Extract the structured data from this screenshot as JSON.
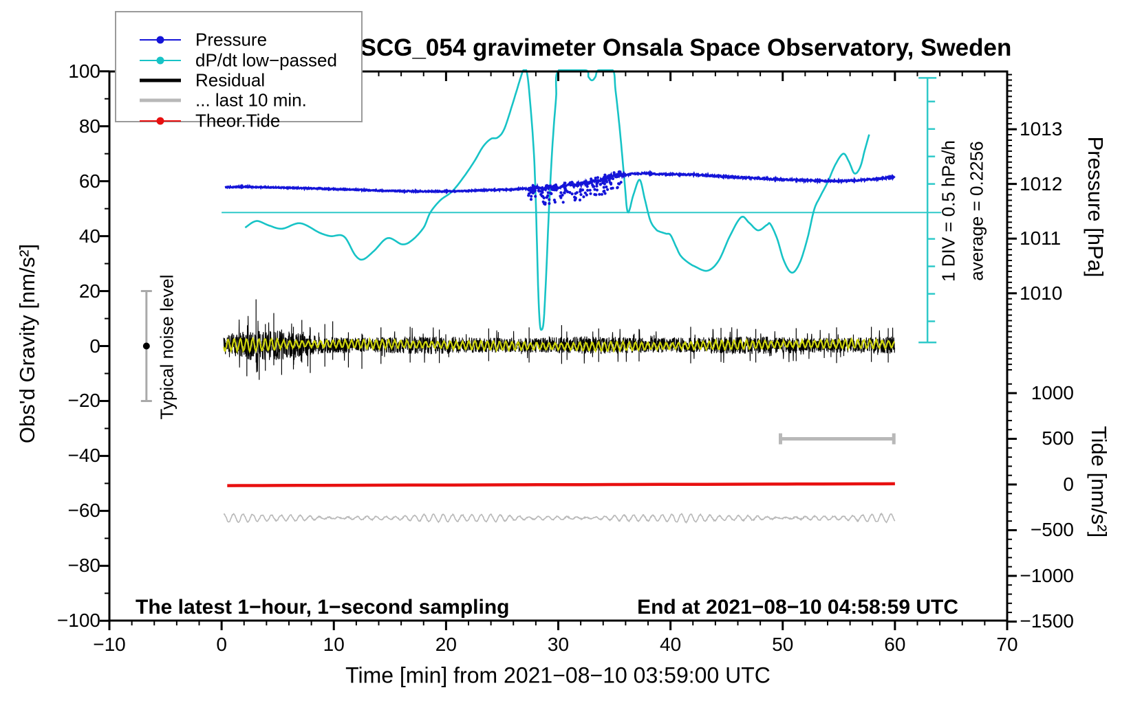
{
  "title": "SCG_054 gravimeter Onsala Space Observatory, Sweden",
  "annotations": {
    "sampling": "The latest 1−hour, 1−second sampling",
    "end": "End at 2021−08−10 04:58:59 UTC",
    "div": "1 DIV = 0.5 hPa/h",
    "average": "average = 0.2256",
    "noise": "Typical noise level"
  },
  "legend": {
    "items": [
      {
        "label": "Pressure",
        "color": "#1414d8",
        "marker": true,
        "thick": 2.5
      },
      {
        "label": "dP/dt low−passed",
        "color": "#17c3c6",
        "marker": true,
        "thick": 2.5
      },
      {
        "label": "Residual",
        "color": "#000000",
        "marker": false,
        "thick": 5
      },
      {
        "label": "... last 10 min.",
        "color": "#b8b8b8",
        "marker": false,
        "thick": 5
      },
      {
        "label": "Theor.Tide",
        "color": "#e81010",
        "marker": true,
        "thick": 2.5
      }
    ]
  },
  "axes": {
    "x": {
      "label": "Time [min] from 2021−08−10 03:59:00 UTC",
      "min": -10,
      "max": 70,
      "major": 10,
      "minor": 2
    },
    "gravity": {
      "label": "Obs'd Gravity [nm/s²]",
      "min": -100,
      "max": 100,
      "major": 20,
      "minor": 10
    },
    "pressure": {
      "label": "Pressure [hPa]",
      "ticks": [
        1013,
        1012,
        1011,
        1010
      ],
      "minor_step": 0.1,
      "g_at_1012": 59.0,
      "g_per_hpa": 19.9
    },
    "tide": {
      "label": "Tide [nm/s²]",
      "ticks": [
        1000,
        500,
        0,
        -500,
        -1000,
        -1500
      ],
      "minor_step": 100,
      "g_at_0": -50.4,
      "g_per_500": 16.63
    }
  },
  "colors": {
    "pressure": "#1414d8",
    "dpdt": "#17c3c6",
    "dpdt_guides": "#2fc9c9",
    "residual": "#000000",
    "residual_smooth": "#cdd30a",
    "last10": "#b8b8b8",
    "tide": "#e81010",
    "noise_bar": "#a9a9a9",
    "frame": "#000000"
  },
  "chart_data": {
    "type": "line",
    "title": "SCG_054 gravimeter Onsala Space Observatory, Sweden",
    "xlabel": "Time [min] from 2021−08−10 03:59:00 UTC",
    "x_range": [
      -10,
      70
    ],
    "gravity_range": [
      -100,
      100
    ],
    "legend_position": "top-left",
    "grid": false,
    "series": [
      {
        "name": "Pressure",
        "units": "hPa",
        "axis": "pressure-right",
        "points": [
          [
            0.3,
            1011.94
          ],
          [
            2,
            1011.95
          ],
          [
            4,
            1011.94
          ],
          [
            6,
            1011.93
          ],
          [
            8,
            1011.92
          ],
          [
            10,
            1011.905
          ],
          [
            12,
            1011.894
          ],
          [
            14,
            1011.879
          ],
          [
            16,
            1011.869
          ],
          [
            18,
            1011.864
          ],
          [
            20,
            1011.864
          ],
          [
            22,
            1011.874
          ],
          [
            24,
            1011.889
          ],
          [
            26,
            1011.899
          ],
          [
            27,
            1011.915
          ],
          [
            27.5,
            1011.9
          ],
          [
            28,
            1011.93
          ],
          [
            28.6,
            1011.905
          ],
          [
            29,
            1011.92
          ],
          [
            29.5,
            1011.94
          ],
          [
            30,
            1011.93
          ],
          [
            30.5,
            1011.955
          ],
          [
            31,
            1011.975
          ],
          [
            31.5,
            1011.97
          ],
          [
            32,
            1012.0
          ],
          [
            32.5,
            1012.02
          ],
          [
            33,
            1012.04
          ],
          [
            33.5,
            1012.065
          ],
          [
            34,
            1012.09
          ],
          [
            34.5,
            1012.126
          ],
          [
            35,
            1012.151
          ],
          [
            35.5,
            1012.171
          ],
          [
            36,
            1012.161
          ],
          [
            36.5,
            1012.181
          ],
          [
            37,
            1012.191
          ],
          [
            38,
            1012.191
          ],
          [
            39,
            1012.181
          ],
          [
            40,
            1012.176
          ],
          [
            42,
            1012.171
          ],
          [
            44,
            1012.146
          ],
          [
            46,
            1012.121
          ],
          [
            48,
            1012.101
          ],
          [
            50,
            1012.08
          ],
          [
            52,
            1012.065
          ],
          [
            54,
            1012.055
          ],
          [
            55,
            1012.055
          ],
          [
            56,
            1012.06
          ],
          [
            57,
            1012.07
          ],
          [
            58,
            1012.085
          ],
          [
            59,
            1012.106
          ],
          [
            60,
            1012.131
          ]
        ],
        "noisy_scatter_window_min": [
          27.3,
          35.6
        ]
      },
      {
        "name": "dP/dt low−passed",
        "units": "hPa/h",
        "axis": "scale-bar",
        "average_hpa_per_h": 0.2256,
        "div_hpa_per_h": 0.5,
        "clip_value": 2.821,
        "points": [
          [
            2.1,
            -0.049
          ],
          [
            3.1,
            0.071
          ],
          [
            4.2,
            -0.009
          ],
          [
            5.4,
            -0.069
          ],
          [
            7,
            0.031
          ],
          [
            8.7,
            -0.139
          ],
          [
            9.7,
            -0.204
          ],
          [
            10.9,
            -0.209
          ],
          [
            11.9,
            -0.549
          ],
          [
            12.6,
            -0.629
          ],
          [
            13.6,
            -0.469
          ],
          [
            14.8,
            -0.239
          ],
          [
            16.1,
            -0.354
          ],
          [
            17,
            -0.274
          ],
          [
            18,
            -0.049
          ],
          [
            18.6,
            0.226
          ],
          [
            19.5,
            0.451
          ],
          [
            20.5,
            0.601
          ],
          [
            21.5,
            0.851
          ],
          [
            22.5,
            1.151
          ],
          [
            23.3,
            1.426
          ],
          [
            24,
            1.566
          ],
          [
            24.6,
            1.591
          ],
          [
            25.2,
            1.751
          ],
          [
            26,
            2.251
          ],
          [
            26.6,
            2.651
          ],
          [
            26.9,
            2.821
          ],
          [
            27.15,
            2.821
          ],
          [
            27.4,
            2.451
          ],
          [
            27.8,
            1.401
          ],
          [
            28,
            0.401
          ],
          [
            28.2,
            -1.099
          ],
          [
            28.35,
            -1.774
          ],
          [
            28.5,
            -1.909
          ],
          [
            28.7,
            -1.749
          ],
          [
            28.9,
            -0.999
          ],
          [
            29.2,
            0.401
          ],
          [
            29.5,
            1.501
          ],
          [
            29.8,
            2.301
          ],
          [
            30.05,
            2.821
          ],
          [
            32.4,
            2.821
          ],
          [
            32.7,
            2.691
          ],
          [
            33,
            2.631
          ],
          [
            33.3,
            2.691
          ],
          [
            33.6,
            2.821
          ],
          [
            34.85,
            2.821
          ],
          [
            35.1,
            2.451
          ],
          [
            35.5,
            1.701
          ],
          [
            35.9,
            0.801
          ],
          [
            36.2,
            0.231
          ],
          [
            36.7,
            0.551
          ],
          [
            37.25,
            0.821
          ],
          [
            37.7,
            0.476
          ],
          [
            38.2,
            0.081
          ],
          [
            38.7,
            -0.079
          ],
          [
            39,
            -0.119
          ],
          [
            39.6,
            -0.159
          ],
          [
            40,
            -0.184
          ],
          [
            40.5,
            -0.399
          ],
          [
            40.9,
            -0.559
          ],
          [
            41.5,
            -0.674
          ],
          [
            42.2,
            -0.759
          ],
          [
            43.3,
            -0.834
          ],
          [
            44.3,
            -0.649
          ],
          [
            45.3,
            -0.199
          ],
          [
            46.3,
            0.141
          ],
          [
            47,
            0.041
          ],
          [
            47.8,
            -0.099
          ],
          [
            48.6,
            0.001
          ],
          [
            48.9,
            0.016
          ],
          [
            49.5,
            -0.249
          ],
          [
            50.1,
            -0.649
          ],
          [
            50.8,
            -0.869
          ],
          [
            51.5,
            -0.699
          ],
          [
            52.2,
            -0.249
          ],
          [
            52.8,
            0.276
          ],
          [
            53.3,
            0.501
          ],
          [
            54,
            0.776
          ],
          [
            54.7,
            1.101
          ],
          [
            55.4,
            1.296
          ],
          [
            55.9,
            1.151
          ],
          [
            56.4,
            0.936
          ],
          [
            56.9,
            1.051
          ],
          [
            57.3,
            1.351
          ],
          [
            57.7,
            1.646
          ]
        ]
      },
      {
        "name": "Residual",
        "units": "nm/s²",
        "axis": "gravity-left",
        "description": "1-second residual noise band centred on 0",
        "center": 0.3,
        "envelope": [
          [
            0,
            4
          ],
          [
            2,
            7.2
          ],
          [
            5.5,
            7.2
          ],
          [
            9,
            4.6
          ],
          [
            12,
            4.1
          ],
          [
            60,
            4.1
          ]
        ],
        "spikes": [
          [
            2.25,
            -11,
            4
          ],
          [
            3.07,
            -6,
            17
          ],
          [
            3.35,
            -12.3,
            5
          ],
          [
            3.9,
            -9,
            8
          ],
          [
            4.65,
            -7,
            12
          ],
          [
            5.35,
            -10.5,
            6
          ],
          [
            6.4,
            -8.5,
            7
          ],
          [
            7.15,
            -6,
            9.5
          ],
          [
            7.9,
            -9.8,
            6.5
          ],
          [
            9.2,
            -7.5,
            8
          ],
          [
            9.9,
            -5,
            9
          ],
          [
            11.3,
            -7.8,
            5
          ],
          [
            12.5,
            -8.3,
            4.5
          ],
          [
            14.2,
            -6.5,
            6.8
          ],
          [
            16.8,
            -6,
            7
          ],
          [
            19.4,
            -6.2,
            6
          ],
          [
            23.8,
            -5.5,
            6.4
          ],
          [
            27.4,
            -6,
            6.8
          ],
          [
            30.3,
            -6.5,
            7.6
          ],
          [
            33.6,
            -5.8,
            6.4
          ],
          [
            37.2,
            -5.6,
            6.2
          ],
          [
            41.8,
            -6.3,
            7
          ],
          [
            44.5,
            -5.8,
            6.6
          ],
          [
            47.6,
            -6,
            6.2
          ],
          [
            51.2,
            -5.5,
            6.5
          ],
          [
            54.8,
            -6.2,
            6.8
          ],
          [
            57.9,
            -5.8,
            7
          ],
          [
            59.4,
            -6,
            6.5
          ]
        ]
      },
      {
        "name": "Residual low-passed (yellow overlay)",
        "units": "nm/s²",
        "axis": "gravity-left",
        "center": 0.3,
        "amplitude": 1.3,
        "period_min": 0.55
      },
      {
        "name": "... last 10 min.",
        "units": "nm/s² (Tide axis)",
        "axis": "tide-right",
        "description": "last-10-minute residual stretched over full width",
        "center": -367,
        "amplitude_range": [
          12,
          40
        ],
        "period_min": 0.85,
        "span_marker_t": [
          49.8,
          59.9
        ],
        "span_marker_tide": 500
      },
      {
        "name": "Theor.Tide",
        "units": "nm/s²",
        "axis": "tide-right",
        "points": [
          [
            0.5,
            -12
          ],
          [
            15,
            -7
          ],
          [
            30,
            -2
          ],
          [
            45,
            3
          ],
          [
            60,
            8
          ]
        ]
      }
    ],
    "noise_bar": {
      "t": -6.7,
      "gravity_center": 0,
      "gravity_halfspan": 20
    },
    "dpdt_scale_bar": {
      "t": 62.9,
      "gravity_top": 97.6,
      "gravity_bottom": 1.3,
      "tick_every_gravity": 10,
      "average_line_gravity": 48.6
    }
  }
}
